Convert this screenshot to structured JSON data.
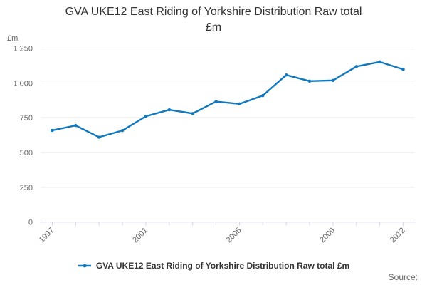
{
  "chart_data": {
    "type": "line",
    "title": "GVA UKE12 East Riding of Yorkshire Distribution Raw total £m",
    "title_lines": [
      "GVA UKE12 East Riding of Yorkshire Distribution Raw total",
      "£m"
    ],
    "ylabel": "£m",
    "xlabel": "",
    "x": [
      1997,
      1998,
      1999,
      2000,
      2001,
      2002,
      2003,
      2004,
      2005,
      2006,
      2007,
      2008,
      2009,
      2010,
      2011,
      2012
    ],
    "series": [
      {
        "name": "GVA UKE12 East Riding of Yorkshire Distribution Raw total £m",
        "values": [
          659,
          694,
          610,
          658,
          760,
          807,
          780,
          866,
          849,
          909,
          1057,
          1013,
          1018,
          1118,
          1151,
          1097
        ]
      }
    ],
    "ylim": [
      0,
      1250
    ],
    "y_ticks": [
      0,
      250,
      500,
      750,
      1000,
      1250
    ],
    "y_tick_labels": [
      "0",
      "250",
      "500",
      "750",
      "1 000",
      "1 250"
    ],
    "x_ticks_labeled": [
      "1997",
      "2001",
      "2005",
      "2009",
      "2012"
    ],
    "grid": true,
    "legend_position": "bottom"
  },
  "legend": {
    "label": "GVA UKE12 East Riding of Yorkshire Distribution Raw total £m"
  },
  "source": {
    "label": "Source:"
  },
  "colors": {
    "series": "#1178be",
    "grid": "#e6e6e6",
    "axis": "#ccd6eb",
    "muted_text": "#666666",
    "dark_text": "#333333"
  }
}
